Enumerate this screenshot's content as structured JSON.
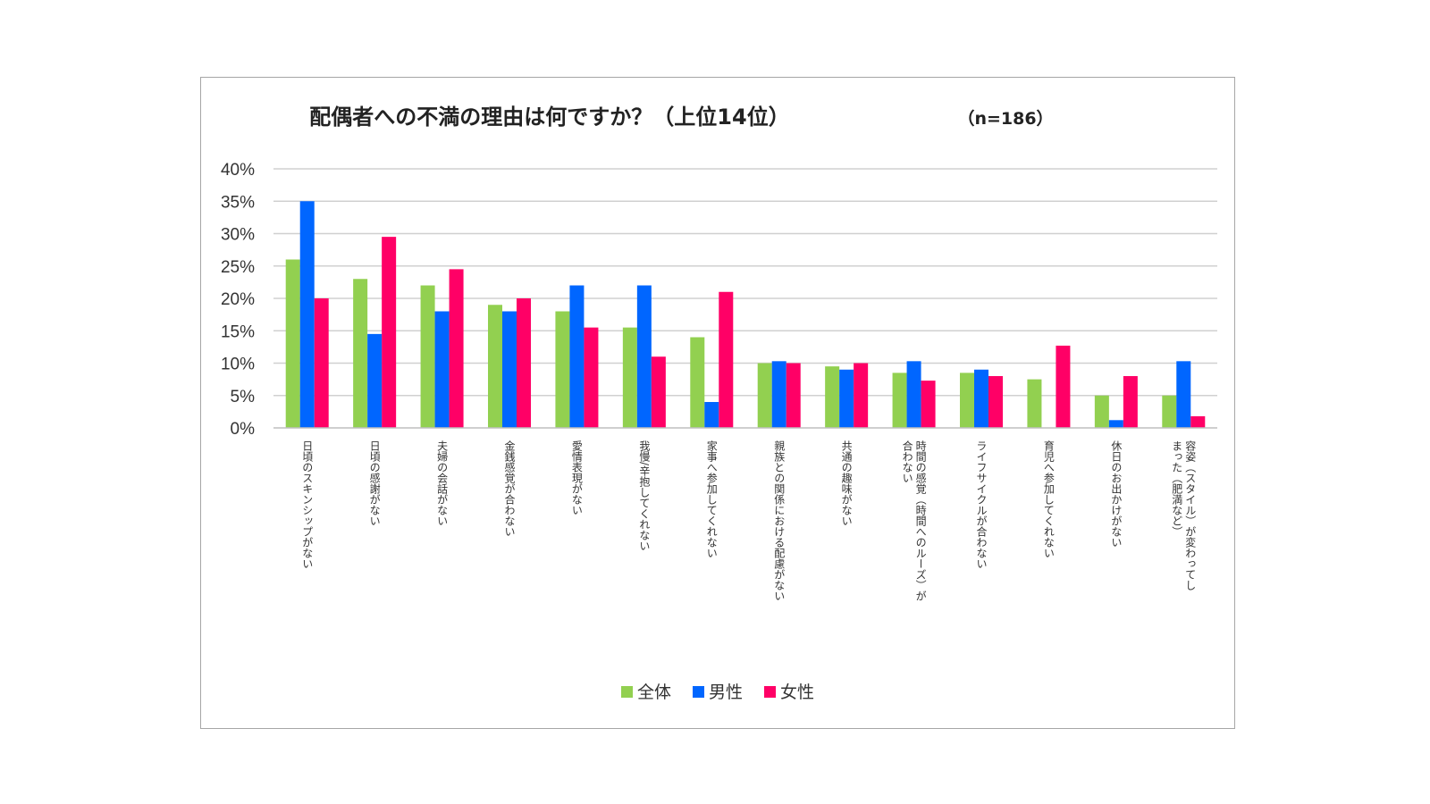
{
  "chart_data": {
    "type": "bar",
    "title": "配偶者への不満の理由は何ですか？（上位14位）",
    "subtitle": "（n=186）",
    "xlabel": "",
    "ylabel": "",
    "ylim": [
      0,
      40
    ],
    "yticks": [
      "0%",
      "5%",
      "10%",
      "15%",
      "20%",
      "25%",
      "30%",
      "35%",
      "40%"
    ],
    "grid": true,
    "legend_position": "bottom",
    "categories": [
      [
        "日頃のスキンシップがない"
      ],
      [
        "日頃の感謝がない"
      ],
      [
        "夫婦の会話がない"
      ],
      [
        "金銭感覚が合わない"
      ],
      [
        "愛情表現がない"
      ],
      [
        "我慢/辛抱してくれない"
      ],
      [
        "家事へ参加してくれない"
      ],
      [
        "親族との関係における配慮がない"
      ],
      [
        "共通の趣味がない"
      ],
      [
        "時間の感覚（時間へのルーズ）が",
        "合わない"
      ],
      [
        "ライフサイクルが合わない"
      ],
      [
        "育児へ参加してくれない"
      ],
      [
        "休日のお出かけがない"
      ],
      [
        "容姿（スタイル）が変わってし",
        "まった（肥満など）"
      ]
    ],
    "series": [
      {
        "name": "全体",
        "color": "#92d050",
        "values": [
          26,
          23,
          22,
          19,
          18,
          15.5,
          14,
          10,
          9.5,
          8.5,
          8.5,
          7.5,
          5,
          5
        ]
      },
      {
        "name": "男性",
        "color": "#0066ff",
        "values": [
          35,
          14.5,
          18,
          18,
          22,
          22,
          4,
          10.3,
          9,
          10.3,
          9,
          0,
          1.2,
          10.3
        ]
      },
      {
        "name": "女性",
        "color": "#ff0066",
        "values": [
          20,
          29.5,
          24.5,
          20,
          15.5,
          11,
          21,
          10,
          10,
          7.3,
          8,
          12.7,
          8,
          1.8
        ]
      }
    ]
  }
}
